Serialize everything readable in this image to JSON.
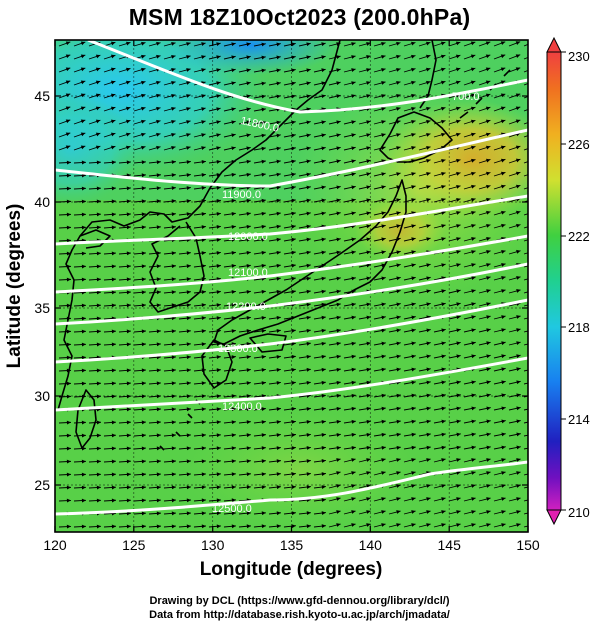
{
  "title": "MSM 18Z10Oct2023 (200.0hPa)",
  "xlabel": "Longitude (degrees)",
  "ylabel": "Latitude  (degrees)",
  "x_ticks": [
    "120",
    "125",
    "130",
    "135",
    "140",
    "145",
    "150"
  ],
  "y_ticks": [
    "25",
    "30",
    "35",
    "40",
    "45"
  ],
  "colorbar": {
    "labels": [
      "230",
      "226",
      "222",
      "218",
      "214",
      "210"
    ],
    "min": 210,
    "max": 230
  },
  "contours": [
    {
      "label": "11800.0"
    },
    {
      "label": "11900.0"
    },
    {
      "label": "12000.0"
    },
    {
      "label": "12100.0"
    },
    {
      "label": "12200.0"
    },
    {
      "label": "12300.0"
    },
    {
      "label": "12400.0"
    },
    {
      "label": "12500.0"
    }
  ],
  "contour_label_partial": "700.0",
  "credits": {
    "line1": "Drawing by DCL (https://www.gfd-dennou.org/library/dcl/)",
    "line2": "Data from http://database.rish.kyoto-u.ac.jp/arch/jmadata/"
  },
  "colors": {
    "field_cold": "#00b4f0",
    "field_mid": "#50d040",
    "field_warm": "#f0a020",
    "contour": "#ffffff",
    "arrow": "#000000"
  }
}
